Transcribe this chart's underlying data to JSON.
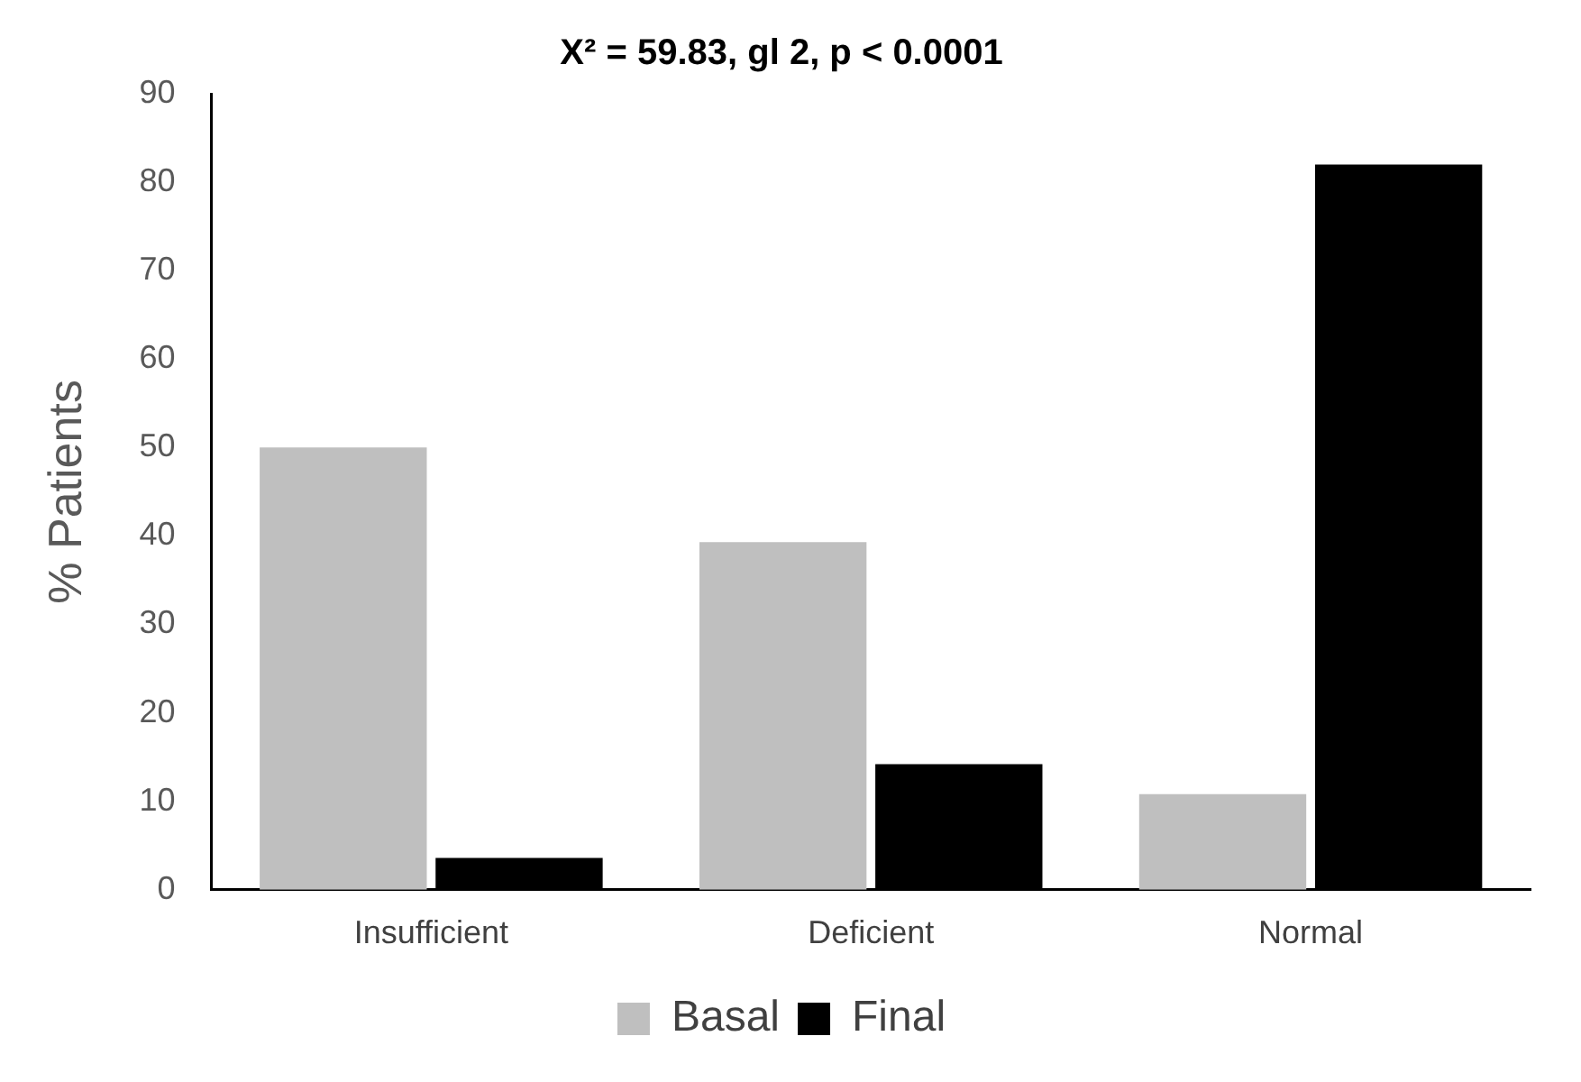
{
  "chart_data": {
    "type": "bar",
    "title": "X² = 59.83, gl 2, p < 0.0001",
    "ylabel": "% Patients",
    "categories": [
      "Insufficient",
      "Deficient",
      "Normal"
    ],
    "series": [
      {
        "name": "Basal",
        "color": "#bfbfbf",
        "values": [
          50,
          39.3,
          10.8
        ]
      },
      {
        "name": "Final",
        "color": "#000000",
        "values": [
          3.6,
          14.2,
          82
        ]
      }
    ],
    "ylim": [
      0,
      90
    ],
    "yticks": [
      0,
      10,
      20,
      30,
      40,
      50,
      60,
      70,
      80,
      90
    ],
    "grid": false,
    "legend": "bottom"
  }
}
